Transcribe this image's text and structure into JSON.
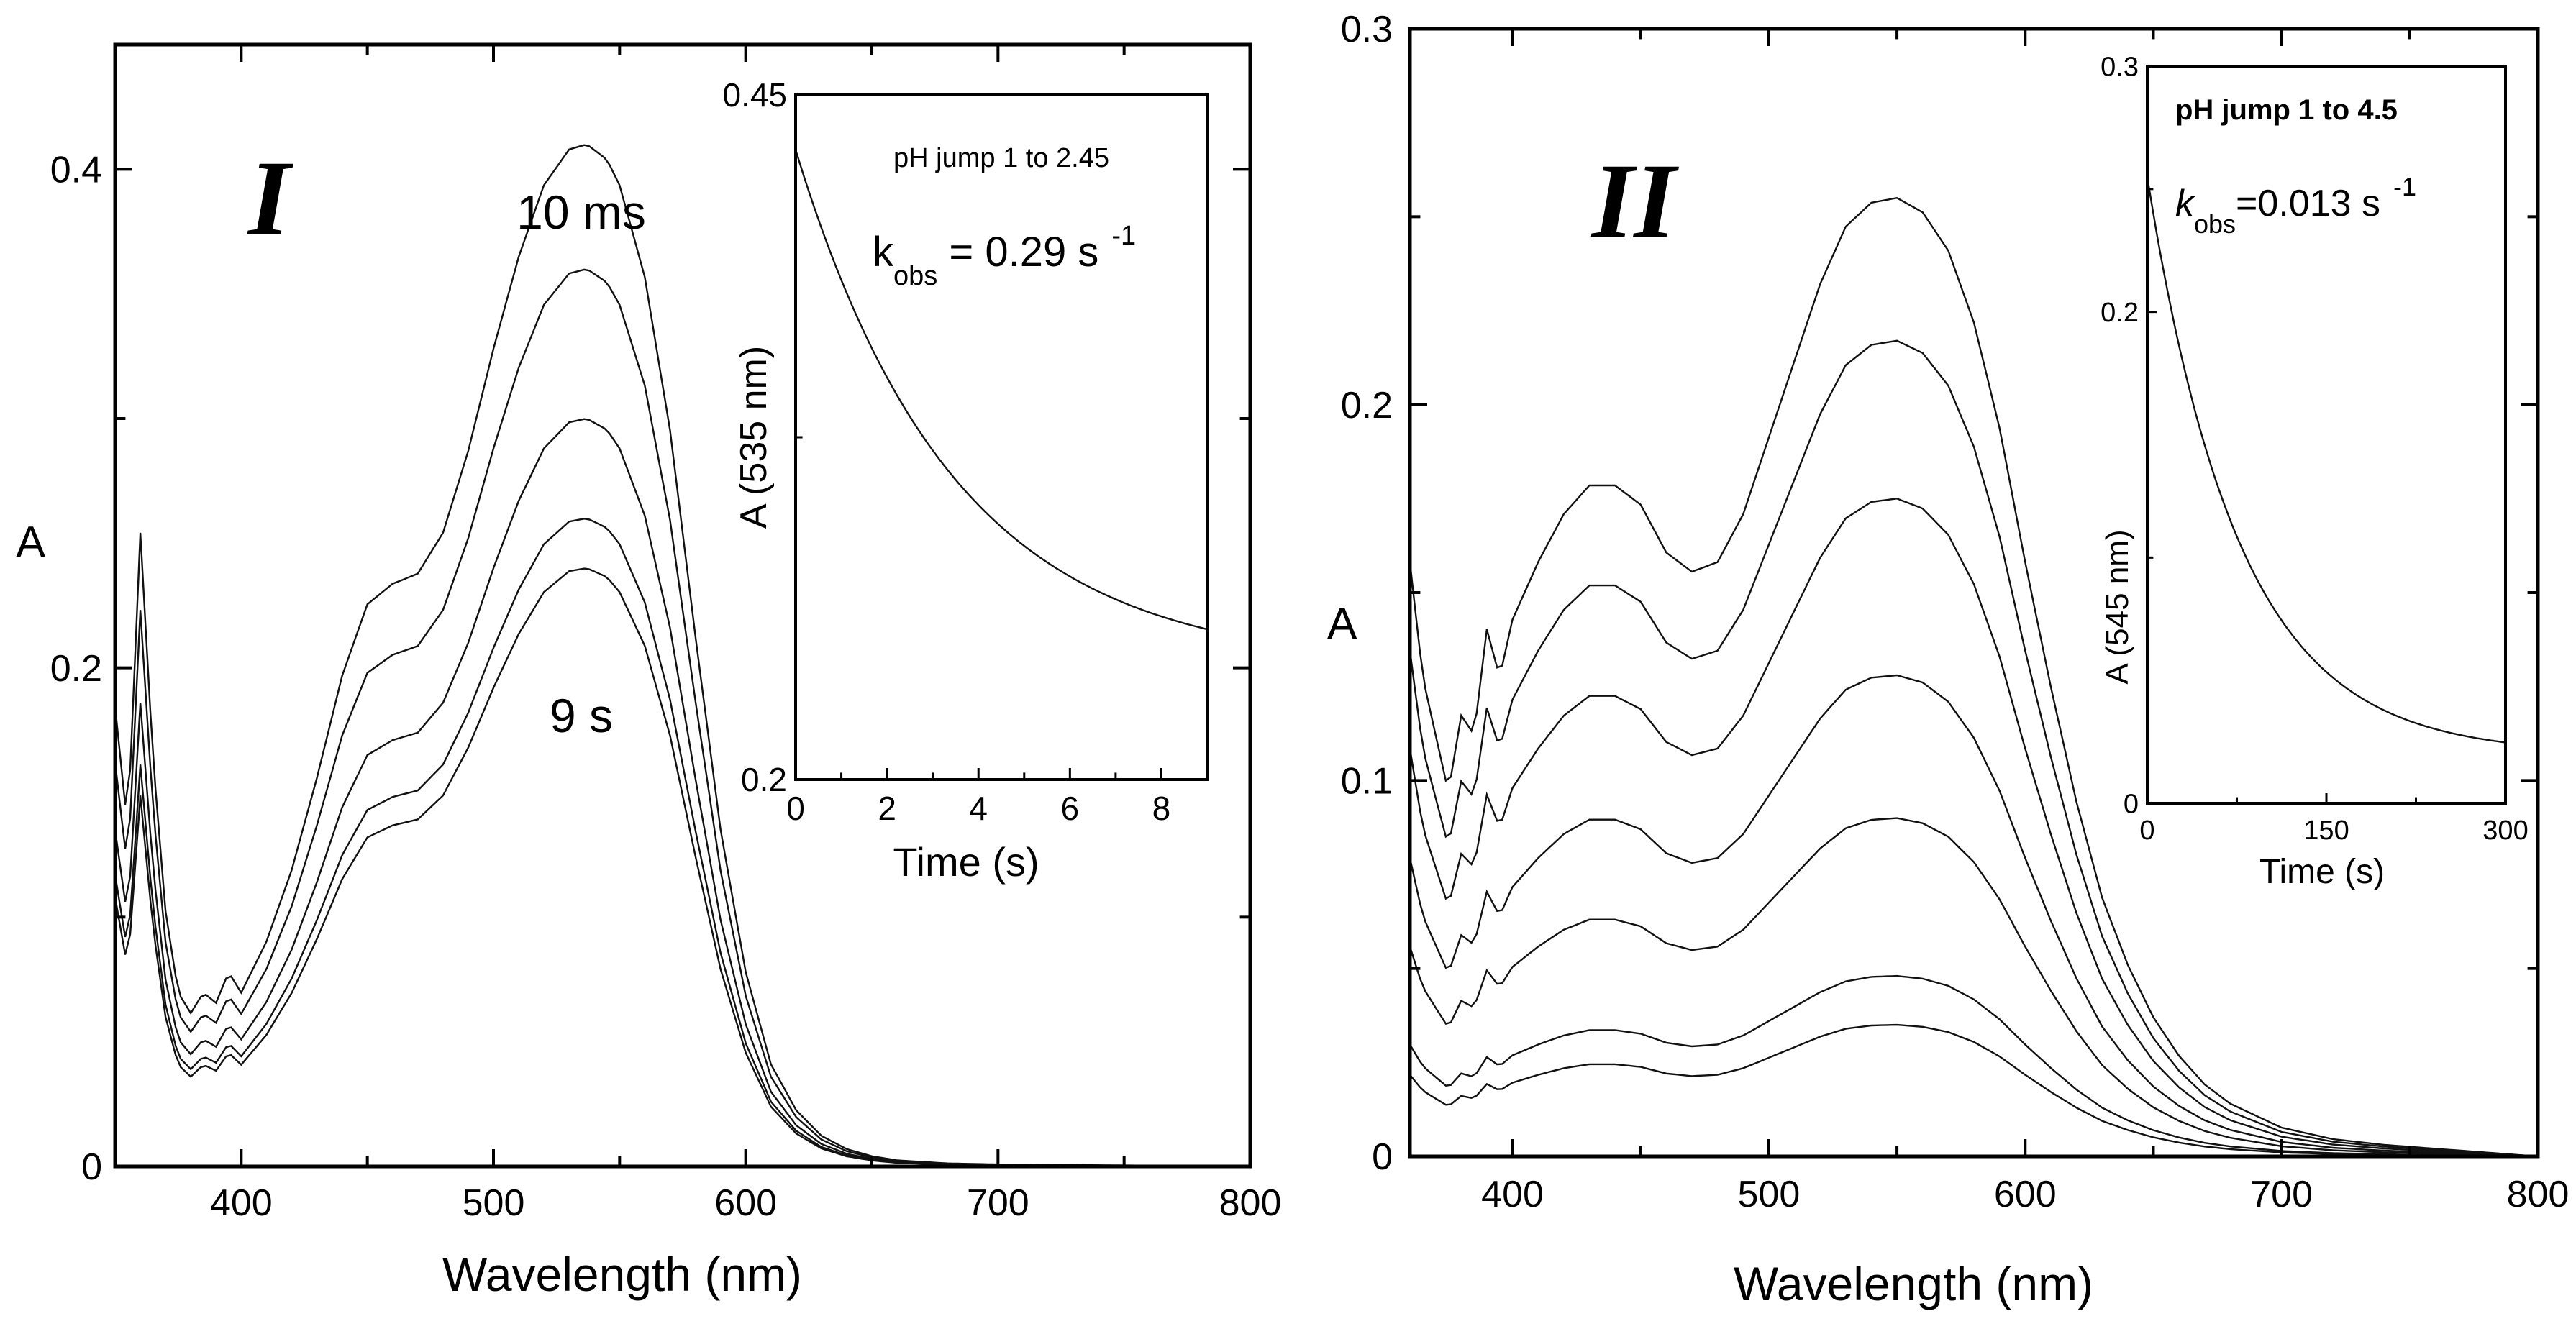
{
  "chart_data": [
    {
      "id": "panel-I",
      "type": "line",
      "panel_label": "I",
      "xlabel": "Wavelength (nm)",
      "ylabel": "A",
      "xlim": [
        350,
        800
      ],
      "ylim": [
        0,
        0.45
      ],
      "x_ticks": [
        "400",
        "500",
        "600",
        "700",
        "800"
      ],
      "x_tick_values": [
        400,
        500,
        600,
        700,
        800
      ],
      "y_ticks": [
        "0",
        "0.2",
        "0.4"
      ],
      "y_tick_values": [
        0,
        0.2,
        0.4
      ],
      "annotations": [
        {
          "text": "10 ms",
          "x": 537,
          "y": 0.423
        },
        {
          "text": "9 s",
          "x": 537,
          "y": 0.193
        }
      ],
      "spectra": {
        "x": [
          350,
          355,
          360,
          365,
          370,
          375,
          380,
          385,
          390,
          395,
          400,
          410,
          420,
          430,
          440,
          450,
          460,
          470,
          480,
          490,
          500,
          510,
          520,
          530,
          537,
          545,
          550,
          560,
          570,
          580,
          590,
          600,
          610,
          620,
          630,
          640,
          650,
          660,
          680,
          700,
          750,
          800
        ],
        "shape": [
          0.45,
          0.33,
          0.62,
          0.4,
          0.25,
          0.17,
          0.15,
          0.17,
          0.16,
          0.19,
          0.17,
          0.22,
          0.29,
          0.38,
          0.48,
          0.55,
          0.57,
          0.58,
          0.62,
          0.7,
          0.8,
          0.89,
          0.96,
          0.995,
          1.0,
          0.985,
          0.96,
          0.87,
          0.72,
          0.52,
          0.33,
          0.19,
          0.1,
          0.055,
          0.03,
          0.017,
          0.01,
          0.006,
          0.003,
          0.002,
          0.001,
          0.0
        ],
        "peak_values": [
          0.41,
          0.36,
          0.3,
          0.26,
          0.24
        ]
      },
      "inset": {
        "type": "line",
        "xlabel": "Time (s)",
        "ylabel": "A (535 nm)",
        "xlim": [
          0,
          9
        ],
        "ylim": [
          0.2,
          0.45
        ],
        "x_ticks": [
          "0",
          "2",
          "4",
          "6",
          "8"
        ],
        "x_tick_values": [
          0,
          2,
          4,
          6,
          8
        ],
        "y_ticks": [
          "0.2",
          "0.45"
        ],
        "y_tick_values": [
          0.2,
          0.45
        ],
        "title": "pH jump 1 to 2.45",
        "k_label": "k",
        "k_sub": "obs",
        "k_value": " = 0.29 s",
        "k_exp": "-1",
        "decay": {
          "a0": 0.43,
          "a_inf": 0.241,
          "k": 0.29
        }
      }
    },
    {
      "id": "panel-II",
      "type": "line",
      "panel_label": "II",
      "xlabel": "Wavelength (nm)",
      "ylabel": "A",
      "xlim": [
        360,
        800
      ],
      "ylim": [
        0,
        0.3
      ],
      "x_ticks": [
        "400",
        "500",
        "600",
        "700",
        "800"
      ],
      "x_tick_values": [
        400,
        500,
        600,
        700,
        800
      ],
      "y_ticks": [
        "0",
        "0.1",
        "0.2",
        "0.3"
      ],
      "y_tick_values": [
        0,
        0.1,
        0.2,
        0.3
      ],
      "spectra": {
        "x": [
          360,
          365,
          370,
          375,
          380,
          385,
          390,
          395,
          400,
          410,
          420,
          430,
          440,
          450,
          460,
          470,
          480,
          490,
          500,
          510,
          520,
          530,
          540,
          550,
          560,
          570,
          580,
          590,
          600,
          610,
          620,
          630,
          640,
          650,
          660,
          670,
          680,
          700,
          720,
          740,
          760,
          780,
          800
        ],
        "shape": [
          0.62,
          0.5,
          0.44,
          0.38,
          0.46,
          0.44,
          0.55,
          0.5,
          0.56,
          0.62,
          0.67,
          0.7,
          0.7,
          0.68,
          0.63,
          0.61,
          0.62,
          0.67,
          0.75,
          0.83,
          0.91,
          0.97,
          0.995,
          1.0,
          0.985,
          0.945,
          0.87,
          0.76,
          0.62,
          0.49,
          0.37,
          0.27,
          0.2,
          0.145,
          0.105,
          0.075,
          0.055,
          0.03,
          0.018,
          0.012,
          0.008,
          0.004,
          0.0
        ],
        "peak_values": [
          0.255,
          0.217,
          0.175,
          0.128,
          0.09,
          0.048,
          0.035
        ]
      },
      "inset": {
        "type": "line",
        "xlabel": "Time (s)",
        "ylabel": "A (545 nm)",
        "xlim": [
          0,
          300
        ],
        "ylim": [
          0,
          0.3
        ],
        "x_ticks": [
          "0",
          "150",
          "300"
        ],
        "x_tick_values": [
          0,
          150,
          300
        ],
        "y_ticks": [
          "0",
          "0.2",
          "0.3"
        ],
        "y_tick_values": [
          0,
          0.2,
          0.3
        ],
        "title": "pH jump 1 to 4.5",
        "k_label": "k",
        "k_sub": "obs",
        "k_value": "=0.013 s",
        "k_exp": "-1",
        "decay": {
          "a0": 0.255,
          "a_inf": 0.02,
          "k": 0.013
        }
      }
    }
  ]
}
